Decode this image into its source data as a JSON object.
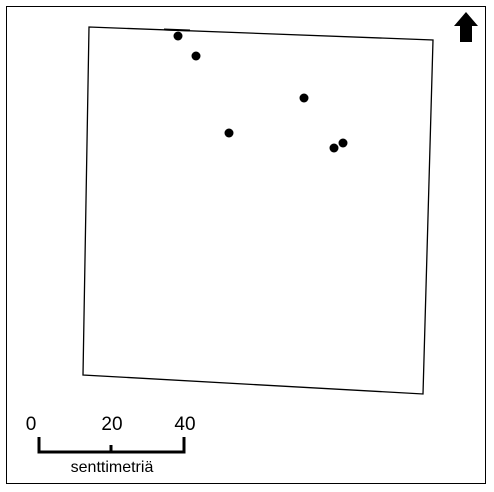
{
  "map": {
    "north_arrow_icon": "north-arrow-icon",
    "plot_outline_color": "#000000",
    "markers_count_label": "",
    "markers": [
      {
        "id": "marker-1"
      },
      {
        "id": "marker-2"
      },
      {
        "id": "marker-3"
      },
      {
        "id": "marker-4"
      },
      {
        "id": "marker-5"
      },
      {
        "id": "marker-6"
      }
    ]
  },
  "scale_bar": {
    "tick_labels": [
      "0",
      "20",
      "40"
    ],
    "unit_label": "senttimetriä"
  }
}
